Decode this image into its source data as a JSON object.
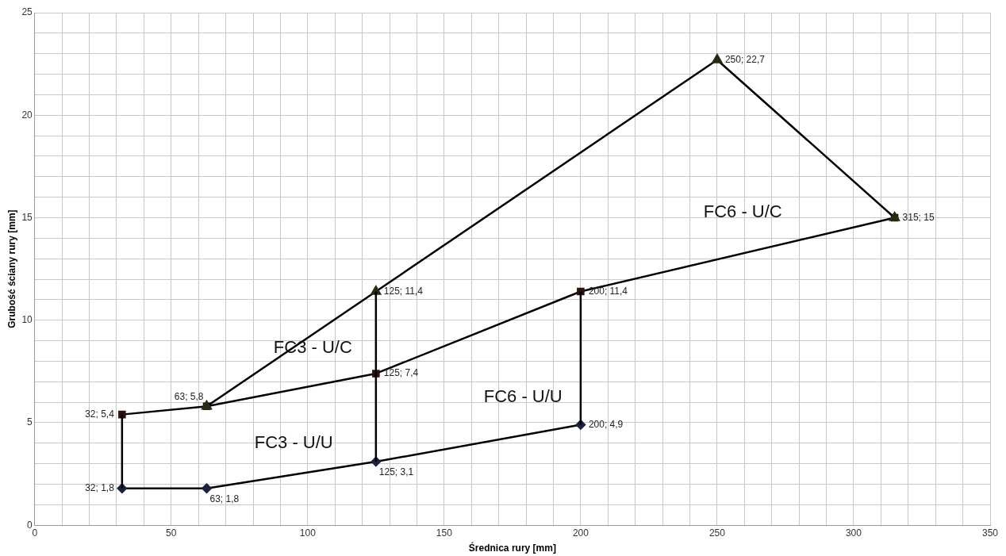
{
  "chart_data": {
    "type": "line",
    "xlabel": "Średnica rury [mm]",
    "ylabel": "Grubość ściany rury [mm]",
    "xlim": [
      0,
      350
    ],
    "ylim": [
      0,
      25
    ],
    "xticks": [
      0,
      {
        "value": 10,
        "label": null
      },
      {
        "value": 20,
        "label": null
      },
      {
        "value": 30,
        "label": null
      },
      {
        "value": 40,
        "label": null
      },
      50,
      {
        "value": 60,
        "label": null
      },
      {
        "value": 70,
        "label": null
      },
      {
        "value": 80,
        "label": null
      },
      {
        "value": 90,
        "label": null
      },
      100,
      {
        "value": 110,
        "label": null
      },
      {
        "value": 120,
        "label": null
      },
      {
        "value": 130,
        "label": null
      },
      {
        "value": 140,
        "label": null
      },
      150,
      {
        "value": 160,
        "label": null
      },
      {
        "value": 170,
        "label": null
      },
      {
        "value": 180,
        "label": null
      },
      {
        "value": 190,
        "label": null
      },
      200,
      {
        "value": 210,
        "label": null
      },
      {
        "value": 220,
        "label": null
      },
      {
        "value": 230,
        "label": null
      },
      {
        "value": 240,
        "label": null
      },
      250,
      {
        "value": 260,
        "label": null
      },
      {
        "value": 270,
        "label": null
      },
      {
        "value": 280,
        "label": null
      },
      {
        "value": 290,
        "label": null
      },
      300,
      {
        "value": 310,
        "label": null
      },
      {
        "value": 320,
        "label": null
      },
      {
        "value": 330,
        "label": null
      },
      {
        "value": 340,
        "label": null
      },
      350
    ],
    "yticks": [
      0,
      {
        "value": 1,
        "label": null
      },
      {
        "value": 2,
        "label": null
      },
      {
        "value": 3,
        "label": null
      },
      {
        "value": 4,
        "label": null
      },
      5,
      {
        "value": 6,
        "label": null
      },
      {
        "value": 7,
        "label": null
      },
      {
        "value": 8,
        "label": null
      },
      {
        "value": 9,
        "label": null
      },
      10,
      {
        "value": 11,
        "label": null
      },
      {
        "value": 12,
        "label": null
      },
      {
        "value": 13,
        "label": null
      },
      {
        "value": 14,
        "label": null
      },
      15,
      {
        "value": 16,
        "label": null
      },
      {
        "value": 17,
        "label": null
      },
      {
        "value": 18,
        "label": null
      },
      {
        "value": 19,
        "label": null
      },
      20,
      {
        "value": 21,
        "label": null
      },
      {
        "value": 22,
        "label": null
      },
      {
        "value": 23,
        "label": null
      },
      {
        "value": 24,
        "label": null
      },
      25
    ],
    "grid": true,
    "legend": false,
    "line_style": "solid",
    "series": [
      {
        "type": "line",
        "marker": "diamond",
        "color": "#1c2340",
        "x": [
          32,
          63,
          125,
          200
        ],
        "values": [
          1.8,
          1.8,
          3.1,
          4.9
        ],
        "value_labels": [
          "32; 1,8",
          "63; 1,8",
          "125; 3,1",
          "200; 4,9"
        ]
      },
      {
        "type": "line",
        "marker": "square",
        "color": "#2a1410",
        "x": [
          32,
          63,
          125,
          200,
          315
        ],
        "values": [
          5.4,
          5.8,
          7.4,
          11.4,
          15
        ],
        "value_labels": [
          "32; 5,4",
          "63; 5,8",
          "125; 7,4",
          "200; 11,4",
          null
        ]
      },
      {
        "type": "line",
        "marker": "triangle",
        "color": "#2a2a10",
        "x": [
          63,
          125,
          250,
          315
        ],
        "values": [
          5.8,
          11.4,
          22.7,
          15
        ],
        "value_labels": [
          null,
          "125; 11,4",
          "250; 22,7",
          "315; 15"
        ]
      },
      {
        "type": "line",
        "marker": "none",
        "color": "#000000",
        "x": [
          32,
          32
        ],
        "values": [
          1.8,
          5.4
        ]
      },
      {
        "type": "line",
        "marker": "none",
        "color": "#000000",
        "x": [
          125,
          125
        ],
        "values": [
          3.1,
          11.4
        ]
      },
      {
        "type": "line",
        "marker": "none",
        "color": "#000000",
        "x": [
          200,
          200
        ],
        "values": [
          4.9,
          11.4
        ]
      }
    ],
    "annotations": [
      "FC6 - U/C",
      "FC3 - U/C",
      "FC6 - U/U",
      "FC3 - U/U"
    ]
  }
}
